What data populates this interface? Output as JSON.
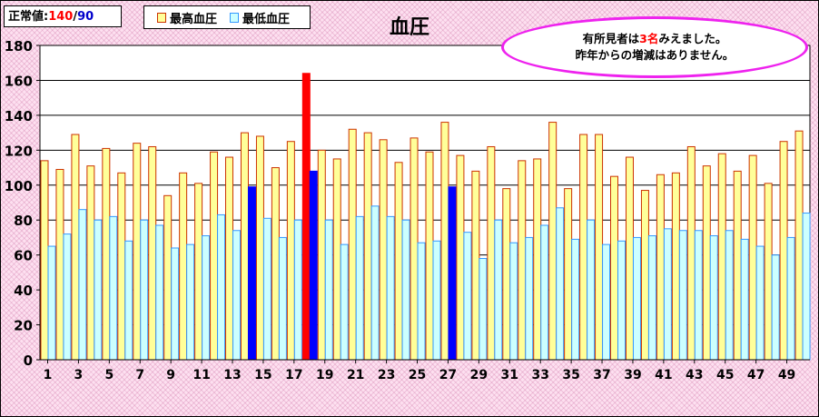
{
  "normal_box": {
    "label": "正常値:",
    "systolic": "140",
    "separator": "/",
    "diastolic": "90"
  },
  "colors": {
    "systolic_fill": "#ffff99",
    "systolic_stroke": "#cc3300",
    "diastolic_fill": "#ccffff",
    "diastolic_stroke": "#3399ff",
    "highlight_systolic": "#ff0000",
    "highlight_diastolic": "#0000ff",
    "ellipse_border": "#ee22ee",
    "red_text": "#ff0000",
    "blue_text": "#0000cc"
  },
  "note": {
    "line1_before": "有所見者は",
    "line1_highlight": "3名",
    "line1_after": "みえました。",
    "line2": "昨年からの増減はありません。"
  },
  "chart_data": {
    "type": "bar",
    "title": "血圧",
    "ylim": [
      0,
      180
    ],
    "yticks": [
      0,
      20,
      40,
      60,
      80,
      100,
      120,
      140,
      160,
      180
    ],
    "grid": true,
    "legend_position": "top-left",
    "categories": [
      1,
      2,
      3,
      4,
      5,
      6,
      7,
      8,
      9,
      10,
      11,
      12,
      13,
      14,
      15,
      16,
      17,
      18,
      19,
      20,
      21,
      22,
      23,
      24,
      25,
      26,
      27,
      28,
      29,
      30,
      31,
      32,
      33,
      34,
      35,
      36,
      37,
      38,
      39,
      40,
      41,
      42,
      43,
      44,
      45,
      46,
      47,
      48,
      49,
      50
    ],
    "xtick_labels": [
      "1",
      "3",
      "5",
      "7",
      "9",
      "11",
      "13",
      "15",
      "17",
      "19",
      "21",
      "23",
      "25",
      "27",
      "29",
      "31",
      "33",
      "35",
      "37",
      "39",
      "41",
      "43",
      "45",
      "47",
      "49"
    ],
    "series": [
      {
        "name": "最高血圧",
        "values": [
          114,
          109,
          129,
          111,
          121,
          107,
          124,
          122,
          94,
          107,
          101,
          119,
          116,
          130,
          128,
          110,
          125,
          164,
          120,
          115,
          132,
          130,
          126,
          113,
          127,
          119,
          136,
          117,
          108,
          122,
          98,
          114,
          115,
          136,
          98,
          129,
          129,
          105,
          116,
          97,
          106,
          107,
          122,
          111,
          118,
          108,
          117,
          101,
          125,
          131
        ]
      },
      {
        "name": "最低血圧",
        "values": [
          65,
          72,
          86,
          80,
          82,
          68,
          80,
          77,
          64,
          66,
          71,
          83,
          74,
          99,
          81,
          70,
          80,
          108,
          80,
          66,
          82,
          88,
          82,
          80,
          67,
          68,
          99,
          73,
          58,
          80,
          67,
          70,
          77,
          87,
          69,
          80,
          66,
          68,
          70,
          71,
          75,
          74,
          74,
          71,
          74,
          69,
          65,
          60,
          70,
          84
        ]
      }
    ],
    "highlight_systolic_indices": [
      17
    ],
    "highlight_diastolic_indices": [
      13,
      17,
      26
    ]
  }
}
